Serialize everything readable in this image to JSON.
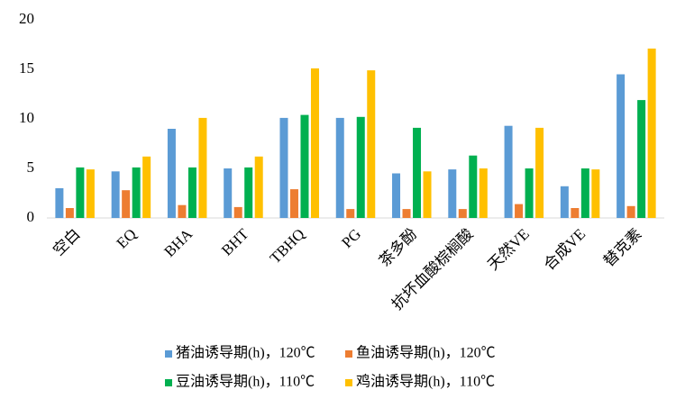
{
  "chart_data": {
    "type": "bar",
    "categories": [
      "空白",
      "EQ",
      "BHA",
      "BHT",
      "TBHQ",
      "PG",
      "茶多酚",
      "抗坏血酸棕榈酸",
      "天然VE",
      "合成VE",
      "替克素"
    ],
    "series": [
      {
        "name": "猪油诱导期(h)，120℃",
        "color": "#5b9bd5",
        "values": [
          3.0,
          4.7,
          9.0,
          5.0,
          10.1,
          10.1,
          4.5,
          4.9,
          9.3,
          3.2,
          14.5
        ]
      },
      {
        "name": "鱼油诱导期(h)，120℃",
        "color": "#ed7d31",
        "values": [
          1.0,
          2.8,
          1.3,
          1.1,
          2.9,
          0.9,
          0.9,
          0.9,
          1.4,
          1.0,
          1.2
        ]
      },
      {
        "name": "豆油诱导期(h)，110℃",
        "color": "#00b050",
        "values": [
          5.1,
          5.1,
          5.1,
          5.1,
          10.4,
          10.2,
          9.1,
          6.3,
          5.0,
          5.0,
          11.9
        ]
      },
      {
        "name": "鸡油诱导期(h)，110℃",
        "color": "#ffc000",
        "values": [
          4.9,
          6.2,
          10.1,
          6.2,
          15.1,
          14.9,
          4.7,
          5.0,
          9.1,
          4.9,
          17.1
        ]
      }
    ],
    "ylim": [
      0,
      20
    ],
    "yticks": [
      0,
      5,
      10,
      15,
      20
    ],
    "grid": false,
    "legend": "bottom"
  }
}
